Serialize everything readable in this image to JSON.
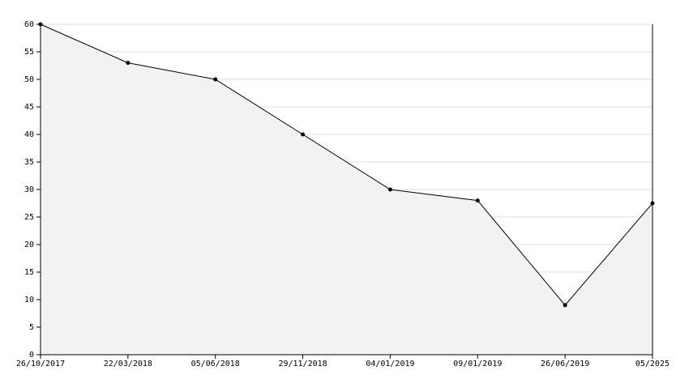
{
  "chart_data": {
    "type": "area",
    "categories": [
      "26/10/2017",
      "22/03/2018",
      "05/06/2018",
      "29/11/2018",
      "04/01/2019",
      "09/01/2019",
      "26/06/2019",
      "05/2025"
    ],
    "values": [
      60,
      53,
      50,
      40,
      30,
      28,
      9,
      27.5
    ],
    "color": "#000000",
    "fill": "#f2f2f2",
    "ylim": [
      0,
      60
    ],
    "yticks": [
      0,
      5,
      10,
      15,
      20,
      25,
      30,
      35,
      40,
      45,
      50,
      55,
      60
    ],
    "grid": true
  }
}
